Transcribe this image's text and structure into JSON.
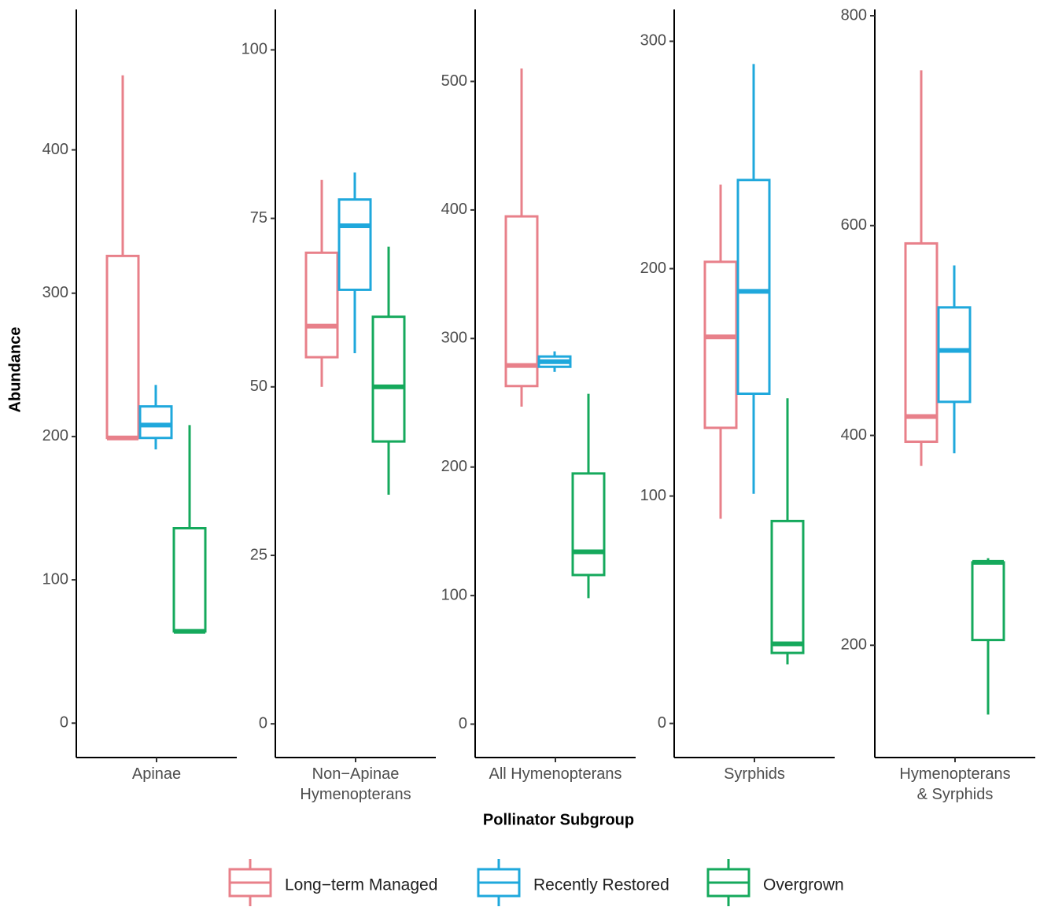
{
  "ylabel": "Abundance",
  "xlabel": "Pollinator Subgroup",
  "chart_data": [
    {
      "type": "box",
      "categories": [
        "Apinae"
      ],
      "ylim": [
        -24,
        498
      ],
      "yticks": [
        0,
        100,
        200,
        300,
        400
      ],
      "series": [
        {
          "name": "Long−term Managed",
          "color": "#e8808a",
          "min": 198,
          "q1": 199,
          "median": 199,
          "q3": 326,
          "max": 452
        },
        {
          "name": "Recently Restored",
          "color": "#1fa8dc",
          "min": 191,
          "q1": 199,
          "median": 208,
          "q3": 221,
          "max": 236
        },
        {
          "name": "Overgrown",
          "color": "#15a95c",
          "min": 63,
          "q1": 64,
          "median": 64,
          "q3": 136,
          "max": 208
        }
      ]
    },
    {
      "type": "box",
      "categories": [
        "Non−Apinae\nHymenopterans"
      ],
      "ylim": [
        -5,
        106
      ],
      "yticks": [
        0,
        25,
        50,
        75,
        100
      ],
      "series": [
        {
          "name": "Long−term Managed",
          "color": "#e8808a",
          "min": 50,
          "q1": 54.4,
          "median": 59,
          "q3": 69.9,
          "max": 80.7
        },
        {
          "name": "Recently Restored",
          "color": "#1fa8dc",
          "min": 55,
          "q1": 64.4,
          "median": 73.9,
          "q3": 77.8,
          "max": 81.8
        },
        {
          "name": "Overgrown",
          "color": "#15a95c",
          "min": 34,
          "q1": 41.9,
          "median": 50,
          "q3": 60.4,
          "max": 70.8
        }
      ]
    },
    {
      "type": "box",
      "categories": [
        "All Hymenopterans"
      ],
      "ylim": [
        -26,
        556
      ],
      "yticks": [
        0,
        100,
        200,
        300,
        400,
        500
      ],
      "series": [
        {
          "name": "Long−term Managed",
          "color": "#e8808a",
          "min": 247,
          "q1": 263,
          "median": 279,
          "q3": 395,
          "max": 510
        },
        {
          "name": "Recently Restored",
          "color": "#1fa8dc",
          "min": 274,
          "q1": 278,
          "median": 282,
          "q3": 286,
          "max": 290
        },
        {
          "name": "Overgrown",
          "color": "#15a95c",
          "min": 98,
          "q1": 116,
          "median": 134,
          "q3": 195,
          "max": 257
        }
      ]
    },
    {
      "type": "box",
      "categories": [
        "Syrphids"
      ],
      "ylim": [
        -15,
        314
      ],
      "yticks": [
        0,
        100,
        200,
        300
      ],
      "series": [
        {
          "name": "Long−term Managed",
          "color": "#e8808a",
          "min": 90,
          "q1": 130,
          "median": 170,
          "q3": 203,
          "max": 237
        },
        {
          "name": "Recently Restored",
          "color": "#1fa8dc",
          "min": 101,
          "q1": 145,
          "median": 190,
          "q3": 239,
          "max": 290
        },
        {
          "name": "Overgrown",
          "color": "#15a95c",
          "min": 26,
          "q1": 31,
          "median": 35,
          "q3": 89,
          "max": 143
        }
      ]
    },
    {
      "type": "box",
      "categories": [
        "Hymenopterans\n& Syrphids"
      ],
      "ylim": [
        93,
        806
      ],
      "yticks": [
        200,
        400,
        600,
        800
      ],
      "series": [
        {
          "name": "Long−term Managed",
          "color": "#e8808a",
          "min": 371,
          "q1": 394,
          "median": 418,
          "q3": 583,
          "max": 748
        },
        {
          "name": "Recently Restored",
          "color": "#1fa8dc",
          "min": 383,
          "q1": 432,
          "median": 481,
          "q3": 522,
          "max": 562
        },
        {
          "name": "Overgrown",
          "color": "#15a95c",
          "min": 134,
          "q1": 205,
          "median": 279,
          "q3": 279,
          "max": 283
        }
      ]
    }
  ]
}
